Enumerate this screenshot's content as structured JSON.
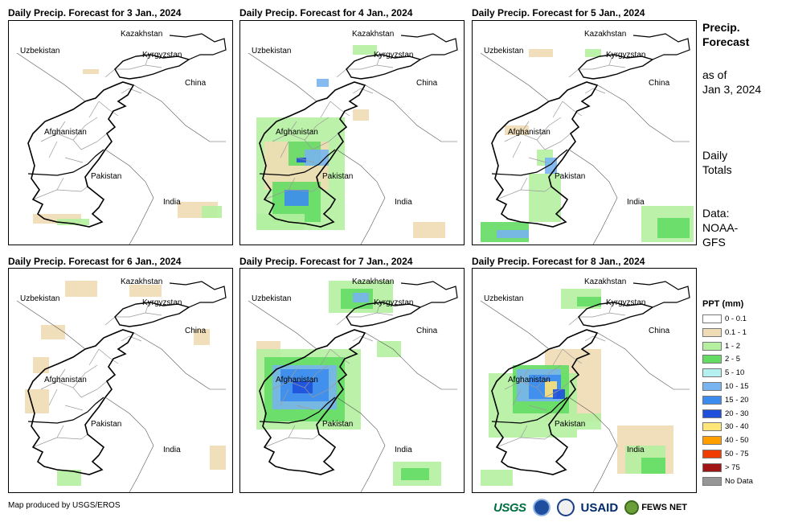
{
  "panels": [
    {
      "title": "Daily Precip. Forecast for 3 Jan., 2024"
    },
    {
      "title": "Daily Precip. Forecast for 4 Jan., 2024"
    },
    {
      "title": "Daily Precip. Forecast for 5 Jan., 2024"
    },
    {
      "title": "Daily Precip. Forecast for 6 Jan., 2024"
    },
    {
      "title": "Daily Precip. Forecast for 7 Jan., 2024"
    },
    {
      "title": "Daily Precip. Forecast for 8 Jan., 2024"
    }
  ],
  "map_labels": {
    "kazakhstan": "Kazakhstan",
    "uzbekistan": "Uzbekistan",
    "kyrgyzstan": "Kyrgyzstan",
    "china": "China",
    "afghanistan": "Afghanistan",
    "pakistan": "Pakistan",
    "india": "India"
  },
  "sidebar": {
    "title_line1": "Precip.",
    "title_line2": "Forecast",
    "asof_line1": "as of",
    "asof_line2": "Jan 3, 2024",
    "totals_line1": "Daily",
    "totals_line2": "Totals",
    "data_line1": "Data:",
    "data_line2": "NOAA-",
    "data_line3": "GFS"
  },
  "legend": {
    "title": "PPT (mm)",
    "items": [
      {
        "label": "0 - 0.1",
        "color": "#ffffff"
      },
      {
        "label": "0.1 - 1",
        "color": "#f0dcb4"
      },
      {
        "label": "1 - 2",
        "color": "#b4f0a0"
      },
      {
        "label": "2 - 5",
        "color": "#64dc64"
      },
      {
        "label": "5 - 10",
        "color": "#b4f0f0"
      },
      {
        "label": "10 - 15",
        "color": "#78b4f0"
      },
      {
        "label": "15 - 20",
        "color": "#3c8cf0"
      },
      {
        "label": "20 - 30",
        "color": "#1e50dc"
      },
      {
        "label": "30 - 40",
        "color": "#ffe678"
      },
      {
        "label": "40 - 50",
        "color": "#ffa000"
      },
      {
        "label": "50 - 75",
        "color": "#f03c00"
      },
      {
        "label": "> 75",
        "color": "#a01414"
      },
      {
        "label": "No Data",
        "color": "#969696"
      }
    ]
  },
  "credit": "Map produced by USGS/EROS",
  "logos": {
    "usgs": "USGS",
    "usaid": "USAID",
    "fews": "FEWS NET"
  }
}
